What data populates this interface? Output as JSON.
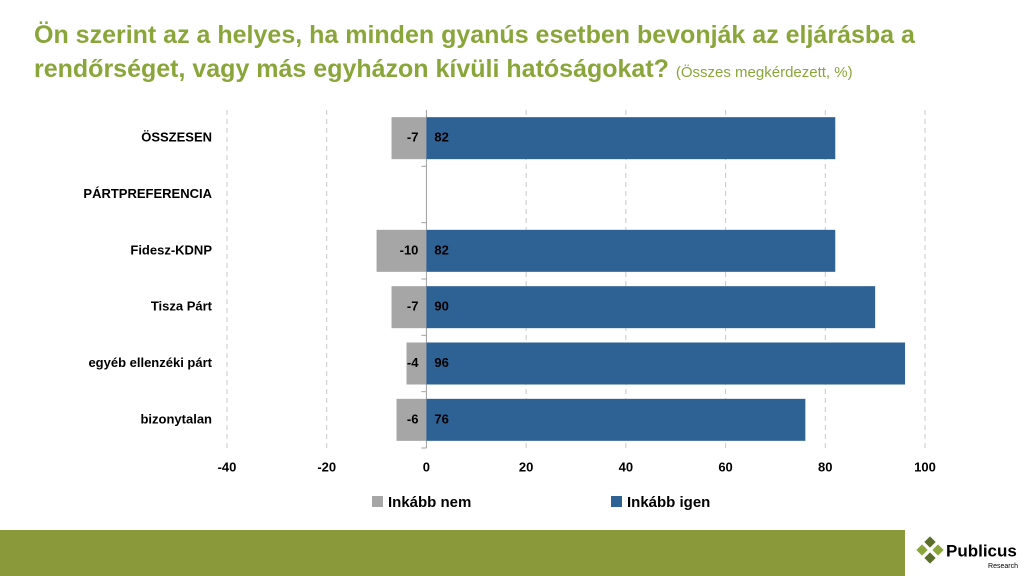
{
  "chart_data": {
    "type": "bar",
    "orientation": "horizontal",
    "stacked": true,
    "title": "Ön szerint az a helyes, ha minden gyanús esetben bevonják az eljárásba a rendőrséget, vagy más egyházon kívüli hatóságokat?",
    "subtitle": "(Összes megkérdezett, %)",
    "categories": [
      "ÖSSZESEN",
      "PÁRTPREFERENCIA",
      "Fidesz-KDNP",
      "Tisza Párt",
      "egyéb ellenzéki párt",
      "bizonytalan"
    ],
    "series": [
      {
        "name": "Inkább nem",
        "color": "#a6a6a6",
        "values": [
          -7,
          null,
          -10,
          -7,
          -4,
          -6
        ]
      },
      {
        "name": "Inkább igen",
        "color": "#2e6294",
        "values": [
          82,
          null,
          82,
          90,
          96,
          76
        ]
      }
    ],
    "xlim": [
      -40,
      100
    ],
    "xticks": [
      -40,
      -20,
      0,
      20,
      40,
      60,
      80,
      100
    ],
    "grid": true,
    "legend": "bottom"
  },
  "footer": {
    "logo": "Publicus",
    "logo_sub": "Research"
  }
}
